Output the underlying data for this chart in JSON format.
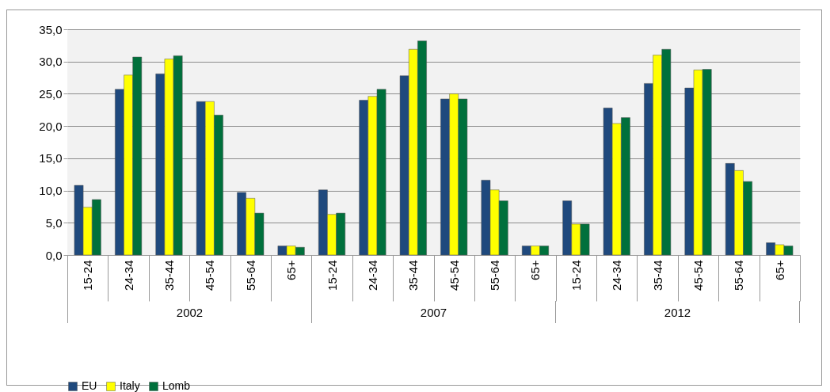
{
  "chart_data": {
    "type": "bar",
    "categories": [
      "15-24",
      "24-34",
      "35-44",
      "45-54",
      "55-64",
      "65+",
      "15-24",
      "24-34",
      "35-44",
      "45-54",
      "55-64",
      "65+",
      "15-24",
      "24-34",
      "35-44",
      "45-54",
      "55-64",
      "65+"
    ],
    "series": [
      {
        "name": "EU",
        "color": "#1f497d",
        "values": [
          10.8,
          25.7,
          28.1,
          23.8,
          9.7,
          1.4,
          10.1,
          24.0,
          27.8,
          24.2,
          11.6,
          1.4,
          8.4,
          22.8,
          26.6,
          25.9,
          14.2,
          1.9
        ]
      },
      {
        "name": "Italy",
        "color": "#ffff00",
        "values": [
          7.4,
          27.9,
          30.4,
          23.8,
          8.8,
          1.4,
          6.3,
          24.6,
          31.9,
          25.0,
          10.1,
          1.4,
          4.8,
          20.4,
          31.0,
          28.7,
          13.1,
          1.6
        ]
      },
      {
        "name": "Lomb",
        "color": "#00703c",
        "values": [
          8.6,
          30.7,
          30.9,
          21.7,
          6.5,
          1.2,
          6.5,
          25.7,
          33.2,
          24.2,
          8.4,
          1.4,
          4.8,
          21.3,
          31.9,
          28.8,
          11.4,
          1.4
        ]
      }
    ],
    "ylim": [
      0,
      35
    ],
    "yticks": [
      {
        "value": 0,
        "label": "0,0"
      },
      {
        "value": 5,
        "label": "5,0"
      },
      {
        "value": 10,
        "label": "10,0"
      },
      {
        "value": 15,
        "label": "15,0"
      },
      {
        "value": 20,
        "label": "20,0"
      },
      {
        "value": 25,
        "label": "25,0"
      },
      {
        "value": 30,
        "label": "30,0"
      },
      {
        "value": 35,
        "label": "35,0"
      }
    ],
    "annotations": [
      "2002",
      "2007",
      "2012"
    ],
    "grid": "y",
    "legend": "bottom"
  }
}
